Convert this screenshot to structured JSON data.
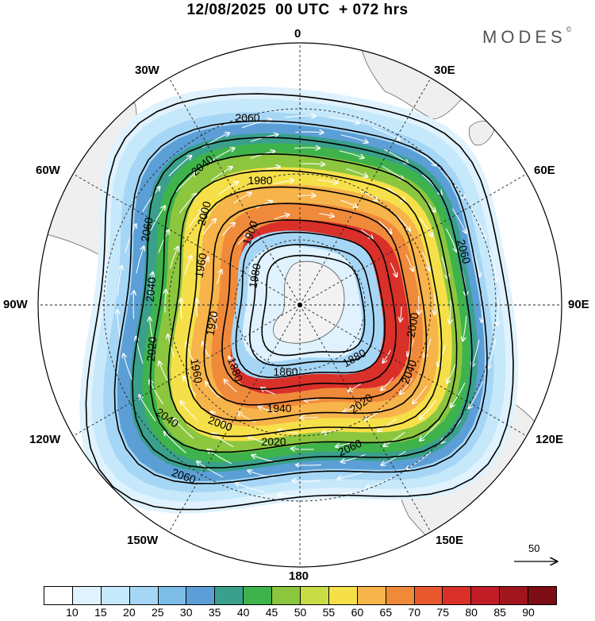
{
  "title": "12/08/2025  00 UTC  + 072 hrs",
  "brand": {
    "name": "MODES",
    "mark": "©"
  },
  "longitude_labels": {
    "n": "0",
    "ne30": "30E",
    "e60": "60E",
    "e90": "90E",
    "e120": "120E",
    "e150": "150E",
    "s": "180",
    "w150": "150W",
    "w120": "120W",
    "w90": "90W",
    "w60": "60W",
    "w30": "30W"
  },
  "contour_labels": {
    "c2060a": "2060",
    "c2060b": "2060",
    "c2060c": "2060",
    "c2060d": "2060",
    "c2060e": "2060",
    "c2040a": "2040",
    "c2040b": "2040",
    "c2040c": "2040",
    "c2040d": "2040",
    "c2020a": "2020",
    "c2020b": "2020",
    "c2020c": "2020",
    "c2000a": "2000",
    "c2000b": "2000",
    "c2000c": "2000",
    "c1980a": "1980",
    "c1980b": "1980",
    "c1960a": "1960",
    "c1960b": "1960",
    "c1940": "1940",
    "c1920": "1920",
    "c1900": "1900",
    "c1880a": "1880",
    "c1880b": "1880",
    "c1860": "1860"
  },
  "colorbar": {
    "labels": [
      "10",
      "15",
      "20",
      "25",
      "30",
      "35",
      "40",
      "45",
      "50",
      "55",
      "60",
      "65",
      "70",
      "75",
      "80",
      "85",
      "90"
    ],
    "colors": [
      "#ffffff",
      "#dff2fd",
      "#c6e8fb",
      "#a6d6f5",
      "#7cbde8",
      "#5b9fd6",
      "#3aa08c",
      "#3fb34b",
      "#8cc63f",
      "#c8dd45",
      "#f6e04a",
      "#f7b44a",
      "#f08a3b",
      "#e8582e",
      "#d9302a",
      "#c21d26",
      "#a1151c",
      "#7d0d14"
    ]
  },
  "reference_vector": {
    "value": "50"
  },
  "speed_rings": [
    {
      "level": 10,
      "color": "#dff2fd"
    },
    {
      "level": 15,
      "color": "#c6e8fb"
    },
    {
      "level": 20,
      "color": "#a6d6f5"
    },
    {
      "level": 30,
      "color": "#5b9fd6"
    },
    {
      "level": 35,
      "color": "#3aa08c"
    },
    {
      "level": 40,
      "color": "#3fb34b"
    },
    {
      "level": 45,
      "color": "#8cc63f"
    },
    {
      "level": 55,
      "color": "#f6e04a"
    },
    {
      "level": 65,
      "color": "#f7b44a"
    },
    {
      "level": 75,
      "color": "#f08a3b"
    },
    {
      "level": 85,
      "color": "#d9302a"
    }
  ]
}
